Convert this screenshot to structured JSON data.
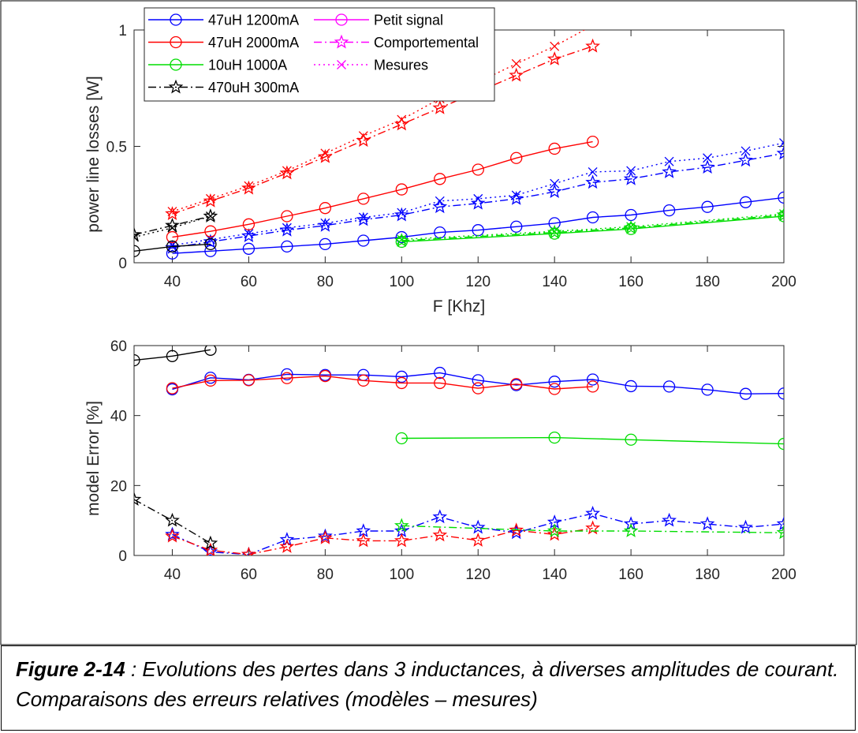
{
  "figure": {
    "caption_label": "Figure 2-14",
    "caption_text": " : Evolutions des pertes dans 3 inductances, à diverses amplitudes de courant. Comparaisons des erreurs relatives (modèles – mesures)"
  },
  "colors": {
    "47uH 1200mA": "#0000ff",
    "47uH 2000mA": "#ff0000",
    "10uH 1000A": "#00dd00",
    "470uH 300mA": "#000000",
    "legend_type": "#ff00ff"
  },
  "legend": {
    "placement": "top-left",
    "series_entries": [
      {
        "label": "47uH 1200mA",
        "color": "#0000ff",
        "marker": "circle",
        "line": "solid"
      },
      {
        "label": "47uH 2000mA",
        "color": "#ff0000",
        "marker": "circle",
        "line": "solid"
      },
      {
        "label": "10uH 1000A",
        "color": "#00dd00",
        "marker": "circle",
        "line": "solid"
      },
      {
        "label": "470uH 300mA",
        "color": "#000000",
        "marker": "star",
        "line": "dashdot"
      }
    ],
    "type_entries": [
      {
        "label": "Petit signal",
        "color": "#ff00ff",
        "marker": "circle",
        "line": "solid"
      },
      {
        "label": "Comportemental",
        "color": "#ff00ff",
        "marker": "star",
        "line": "dashdot"
      },
      {
        "label": "Mesures",
        "color": "#ff00ff",
        "marker": "x",
        "line": "dotted"
      }
    ]
  },
  "chart_data": [
    {
      "type": "line",
      "xlabel": "F [Khz]",
      "ylabel": "power line losses [W]",
      "xlim": [
        30,
        200
      ],
      "ylim": [
        0,
        1
      ],
      "xticks": [
        40,
        60,
        80,
        100,
        120,
        140,
        160,
        180,
        200
      ],
      "yticks": [
        0,
        0.5,
        1
      ],
      "yticklabels": [
        "0",
        "0.5",
        "1"
      ],
      "series": [
        {
          "name": "47uH 1200mA",
          "kind": "Petit signal",
          "color": "#0000ff",
          "marker": "circle",
          "line": "solid",
          "x": [
            40,
            50,
            60,
            70,
            80,
            90,
            100,
            110,
            120,
            130,
            140,
            150,
            160,
            170,
            180,
            190,
            200
          ],
          "y": [
            0.04,
            0.05,
            0.06,
            0.07,
            0.08,
            0.095,
            0.11,
            0.13,
            0.14,
            0.155,
            0.17,
            0.195,
            0.205,
            0.225,
            0.24,
            0.26,
            0.28
          ]
        },
        {
          "name": "47uH 1200mA",
          "kind": "Comportemental",
          "color": "#0000ff",
          "marker": "star",
          "line": "dashdot",
          "x": [
            40,
            50,
            60,
            70,
            80,
            90,
            100,
            110,
            120,
            130,
            140,
            150,
            160,
            170,
            180,
            190,
            200
          ],
          "y": [
            0.065,
            0.09,
            0.115,
            0.14,
            0.16,
            0.185,
            0.205,
            0.24,
            0.255,
            0.275,
            0.305,
            0.345,
            0.36,
            0.39,
            0.41,
            0.44,
            0.47
          ]
        },
        {
          "name": "47uH 1200mA",
          "kind": "Mesures",
          "color": "#0000ff",
          "marker": "x",
          "line": "dotted",
          "x": [
            40,
            50,
            60,
            70,
            80,
            90,
            100,
            110,
            120,
            130,
            140,
            150,
            160,
            170,
            180,
            190,
            200
          ],
          "y": [
            0.075,
            0.1,
            0.125,
            0.15,
            0.17,
            0.195,
            0.215,
            0.265,
            0.275,
            0.29,
            0.34,
            0.39,
            0.395,
            0.435,
            0.45,
            0.48,
            0.515
          ]
        },
        {
          "name": "47uH 2000mA",
          "kind": "Petit signal",
          "color": "#ff0000",
          "marker": "circle",
          "line": "solid",
          "x": [
            40,
            50,
            60,
            70,
            80,
            90,
            100,
            110,
            120,
            130,
            140,
            150
          ],
          "y": [
            0.11,
            0.135,
            0.165,
            0.2,
            0.235,
            0.275,
            0.315,
            0.36,
            0.4,
            0.45,
            0.49,
            0.52
          ]
        },
        {
          "name": "47uH 2000mA",
          "kind": "Comportemental",
          "color": "#ff0000",
          "marker": "star",
          "line": "dashdot",
          "x": [
            40,
            50,
            60,
            70,
            80,
            90,
            100,
            110,
            120,
            130,
            140,
            150
          ],
          "y": [
            0.21,
            0.265,
            0.32,
            0.385,
            0.455,
            0.525,
            0.595,
            0.665,
            0.735,
            0.805,
            0.875,
            0.93
          ]
        },
        {
          "name": "47uH 2000mA",
          "kind": "Mesures",
          "color": "#ff0000",
          "marker": "x",
          "line": "dotted",
          "x": [
            40,
            50,
            60,
            70,
            80,
            90,
            100,
            110,
            120,
            130,
            140,
            150
          ],
          "y": [
            0.22,
            0.275,
            0.33,
            0.395,
            0.47,
            0.545,
            0.615,
            0.705,
            0.775,
            0.855,
            0.93,
            1.02
          ]
        },
        {
          "name": "10uH 1000A",
          "kind": "Petit signal",
          "color": "#00dd00",
          "marker": "circle",
          "line": "solid",
          "x": [
            100,
            140,
            160,
            200
          ],
          "y": [
            0.09,
            0.125,
            0.145,
            0.2
          ]
        },
        {
          "name": "10uH 1000A",
          "kind": "Comportemental",
          "color": "#00dd00",
          "marker": "star",
          "line": "dashdot",
          "x": [
            100,
            140,
            160,
            200
          ],
          "y": [
            0.095,
            0.13,
            0.15,
            0.205
          ]
        },
        {
          "name": "10uH 1000A",
          "kind": "Mesures",
          "color": "#00dd00",
          "marker": "x",
          "line": "dotted",
          "x": [
            100,
            140,
            160,
            200
          ],
          "y": [
            0.1,
            0.135,
            0.155,
            0.21
          ]
        },
        {
          "name": "470uH 300mA",
          "kind": "Petit signal",
          "color": "#000000",
          "marker": "circle",
          "line": "solid",
          "x": [
            30,
            40,
            50
          ],
          "y": [
            0.05,
            0.07,
            0.08
          ]
        },
        {
          "name": "470uH 300mA",
          "kind": "Comportemental",
          "color": "#000000",
          "marker": "star",
          "line": "dashdot",
          "x": [
            30,
            40,
            50
          ],
          "y": [
            0.12,
            0.16,
            0.2
          ]
        },
        {
          "name": "470uH 300mA",
          "kind": "Mesures",
          "color": "#000000",
          "marker": "x",
          "line": "dotted",
          "x": [
            30,
            40,
            50
          ],
          "y": [
            0.11,
            0.15,
            0.2
          ]
        }
      ]
    },
    {
      "type": "line",
      "xlabel": "",
      "ylabel": "model Error [%]",
      "xlim": [
        30,
        200
      ],
      "ylim": [
        0,
        60
      ],
      "xticks": [
        40,
        60,
        80,
        100,
        120,
        140,
        160,
        180,
        200
      ],
      "yticks": [
        0,
        20,
        40,
        60
      ],
      "yticklabels": [
        "0",
        "20",
        "40",
        "60"
      ],
      "series": [
        {
          "name": "47uH 1200mA",
          "kind": "Petit signal",
          "color": "#0000ff",
          "marker": "circle",
          "line": "solid",
          "x": [
            40,
            50,
            60,
            70,
            80,
            90,
            100,
            110,
            120,
            130,
            140,
            150,
            160,
            170,
            180,
            190,
            200
          ],
          "y": [
            47.5,
            50.8,
            50.2,
            51.8,
            51.6,
            51.6,
            51.1,
            52.2,
            50.1,
            48.7,
            49.7,
            50.3,
            48.4,
            48.3,
            47.4,
            46.2,
            46.3
          ]
        },
        {
          "name": "47uH 1200mA",
          "kind": "Comportemental",
          "color": "#0000ff",
          "marker": "star",
          "line": "dashdot",
          "x": [
            40,
            50,
            60,
            70,
            80,
            90,
            100,
            110,
            120,
            130,
            140,
            150,
            160,
            170,
            180,
            190,
            200
          ],
          "y": [
            6.0,
            1.0,
            0.3,
            4.5,
            5.5,
            7.0,
            7.0,
            11.0,
            8.0,
            6.5,
            9.5,
            12.0,
            9.0,
            10.0,
            9.0,
            8.0,
            9.0
          ]
        },
        {
          "name": "47uH 2000mA",
          "kind": "Petit signal",
          "color": "#ff0000",
          "marker": "circle",
          "line": "solid",
          "x": [
            40,
            50,
            60,
            70,
            80,
            90,
            100,
            110,
            120,
            130,
            140,
            150
          ],
          "y": [
            47.8,
            50.0,
            50.1,
            50.7,
            51.3,
            50.0,
            49.3,
            49.3,
            47.8,
            49.0,
            47.6,
            48.3
          ]
        },
        {
          "name": "47uH 2000mA",
          "kind": "Comportemental",
          "color": "#ff0000",
          "marker": "star",
          "line": "dashdot",
          "x": [
            40,
            50,
            60,
            70,
            80,
            90,
            100,
            110,
            120,
            130,
            140,
            150
          ],
          "y": [
            5.5,
            1.5,
            0.3,
            2.5,
            5.0,
            4.2,
            4.2,
            5.8,
            4.3,
            7.2,
            6.0,
            7.8
          ]
        },
        {
          "name": "10uH 1000A",
          "kind": "Petit signal",
          "color": "#00dd00",
          "marker": "circle",
          "line": "solid",
          "x": [
            100,
            140,
            160,
            200
          ],
          "y": [
            33.5,
            33.7,
            33.1,
            31.9
          ]
        },
        {
          "name": "10uH 1000A",
          "kind": "Comportemental",
          "color": "#00dd00",
          "marker": "star",
          "line": "dashdot",
          "x": [
            100,
            140,
            160,
            200
          ],
          "y": [
            8.5,
            7.0,
            7.0,
            6.5
          ]
        },
        {
          "name": "470uH 300mA",
          "kind": "Petit signal",
          "color": "#000000",
          "marker": "circle",
          "line": "solid",
          "x": [
            30,
            40,
            50
          ],
          "y": [
            55.8,
            57.0,
            58.8
          ]
        },
        {
          "name": "470uH 300mA",
          "kind": "Comportemental",
          "color": "#000000",
          "marker": "star",
          "line": "dashdot",
          "x": [
            30,
            40,
            50
          ],
          "y": [
            16.0,
            10.0,
            3.5
          ]
        }
      ]
    }
  ]
}
